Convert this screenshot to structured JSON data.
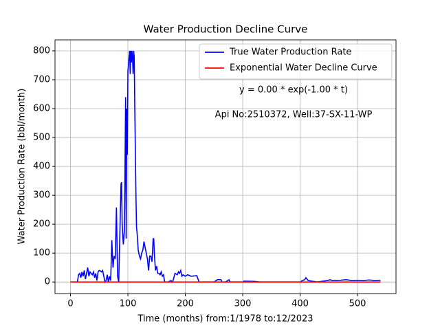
{
  "chart_data": {
    "type": "line",
    "title": "Water Production Decline Curve",
    "x_label": "Time (months) from:1/1978 to:12/2023",
    "y_label": "Water Production Rate (bbl/month)",
    "annotations": [
      "y = 0.00 * exp(-1.00 * t)",
      "Api No:2510372, Well:37-SX-11-WP"
    ],
    "series": [
      {
        "name": "True Water Production Rate",
        "color": "#0000ff",
        "x": [
          0,
          10,
          12,
          14,
          16,
          18,
          20,
          22,
          24,
          26,
          28,
          30,
          32,
          34,
          36,
          38,
          40,
          42,
          44,
          46,
          48,
          50,
          52,
          54,
          56,
          58,
          60,
          62,
          64,
          66,
          68,
          70,
          72,
          74,
          76,
          78,
          80,
          82,
          84,
          86,
          88,
          89,
          90,
          92,
          94,
          96,
          97,
          98,
          99,
          100,
          102,
          103,
          104,
          105,
          106,
          107,
          108,
          109,
          110,
          111,
          112,
          114,
          115,
          116,
          118,
          120,
          122,
          124,
          126,
          128,
          130,
          132,
          134,
          136,
          138,
          140,
          142,
          144,
          145,
          146,
          148,
          150,
          152,
          154,
          156,
          158,
          160,
          162,
          164,
          170,
          175,
          178,
          182,
          186,
          188,
          190,
          192,
          194,
          196,
          200,
          204,
          210,
          220,
          224,
          250,
          256,
          262,
          264,
          270,
          274,
          276,
          278,
          300,
          302,
          320,
          330,
          400,
          404,
          408,
          410,
          412,
          414,
          420,
          430,
          440,
          448,
          452,
          456,
          470,
          480,
          490,
          500,
          510,
          520,
          530,
          540
        ],
        "values": [
          0,
          0,
          0,
          25,
          30,
          15,
          35,
          20,
          40,
          10,
          30,
          50,
          20,
          35,
          30,
          25,
          35,
          15,
          30,
          5,
          35,
          40,
          38,
          35,
          40,
          20,
          0,
          5,
          25,
          0,
          20,
          5,
          145,
          50,
          90,
          80,
          258,
          20,
          0,
          170,
          340,
          345,
          200,
          130,
          180,
          640,
          150,
          600,
          440,
          730,
          780,
          800,
          720,
          800,
          760,
          800,
          780,
          720,
          800,
          780,
          600,
          300,
          190,
          170,
          110,
          90,
          80,
          100,
          110,
          140,
          120,
          100,
          80,
          40,
          90,
          90,
          70,
          150,
          150,
          100,
          40,
          55,
          30,
          30,
          25,
          35,
          20,
          25,
          0,
          0,
          5,
          0,
          30,
          25,
          35,
          30,
          40,
          20,
          25,
          20,
          25,
          20,
          22,
          0,
          0,
          8,
          8,
          0,
          0,
          5,
          8,
          0,
          0,
          3,
          2,
          0,
          0,
          5,
          8,
          15,
          10,
          5,
          3,
          0,
          3,
          5,
          8,
          5,
          6,
          8,
          5,
          6,
          5,
          7,
          5,
          6
        ]
      },
      {
        "name": "Exponential Water Decline Curve",
        "color": "#ff0000",
        "x": [
          0,
          540
        ],
        "values": [
          0,
          0
        ]
      }
    ],
    "xlim": [
      -27,
      567
    ],
    "ylim": [
      -40,
      838
    ],
    "xticks": [
      0,
      100,
      200,
      300,
      400,
      500
    ],
    "yticks": [
      0,
      100,
      200,
      300,
      400,
      500,
      600,
      700,
      800
    ],
    "grid": true,
    "legend": "upper right"
  }
}
